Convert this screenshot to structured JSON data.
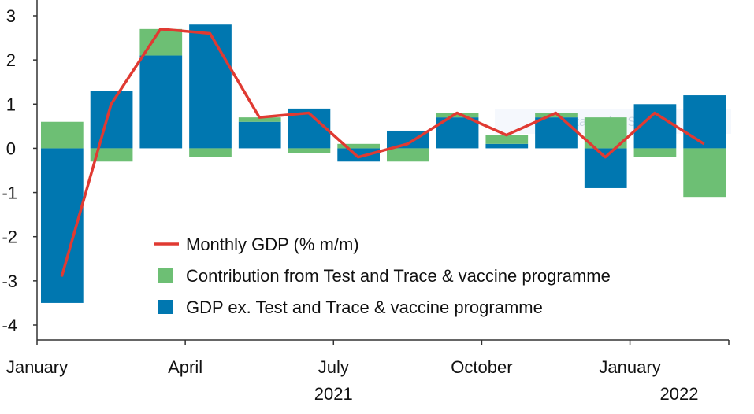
{
  "chart_data": {
    "type": "bar",
    "stacked": true,
    "title": "",
    "xlabel": "",
    "ylabel": "",
    "ylim": [
      -4,
      3
    ],
    "yticks": [
      3,
      2,
      1,
      0,
      -1,
      -2,
      -3,
      -4
    ],
    "categories": [
      "Jan 2021",
      "Feb 2021",
      "Mar 2021",
      "Apr 2021",
      "May 2021",
      "Jun 2021",
      "Jul 2021",
      "Aug 2021",
      "Sep 2021",
      "Oct 2021",
      "Nov 2021",
      "Dec 2021",
      "Jan 2022",
      "Feb 2022"
    ],
    "x_tick_labels": [
      {
        "label": "January",
        "index": 0
      },
      {
        "label": "April",
        "index": 3
      },
      {
        "label": "July",
        "index": 6
      },
      {
        "label": "October",
        "index": 9
      },
      {
        "label": "January",
        "index": 12
      }
    ],
    "year_labels": [
      {
        "label": "2021",
        "index": 6
      },
      {
        "label": "2022",
        "index": 13
      }
    ],
    "series": [
      {
        "name": "GDP ex. Test and Trace & vaccine programme",
        "kind": "bar",
        "color": "#0077b0",
        "values": [
          -3.5,
          1.3,
          2.1,
          2.8,
          0.6,
          0.9,
          -0.3,
          0.4,
          0.7,
          0.1,
          0.7,
          -0.9,
          1.0,
          1.2
        ]
      },
      {
        "name": "Contribution from Test and Trace & vaccine programme",
        "kind": "bar",
        "color": "#6dbf74",
        "values": [
          0.6,
          -0.3,
          0.6,
          -0.2,
          0.1,
          -0.1,
          0.1,
          -0.3,
          0.1,
          0.2,
          0.1,
          0.7,
          -0.2,
          -1.1
        ]
      },
      {
        "name": "Monthly GDP (% m/m)",
        "kind": "line",
        "color": "#e03a32",
        "values": [
          -2.9,
          1.0,
          2.7,
          2.6,
          0.7,
          0.8,
          -0.2,
          0.1,
          0.8,
          0.3,
          0.8,
          -0.2,
          0.8,
          0.1
        ]
      }
    ],
    "legend": {
      "placement": "bottom-center",
      "order": [
        "Monthly GDP (% m/m)",
        "Contribution from Test and Trace & vaccine programme",
        "GDP ex. Test and Trace & vaccine programme"
      ]
    },
    "grid": false
  },
  "overlay": {
    "snip_text": "Rectangular Snip"
  }
}
